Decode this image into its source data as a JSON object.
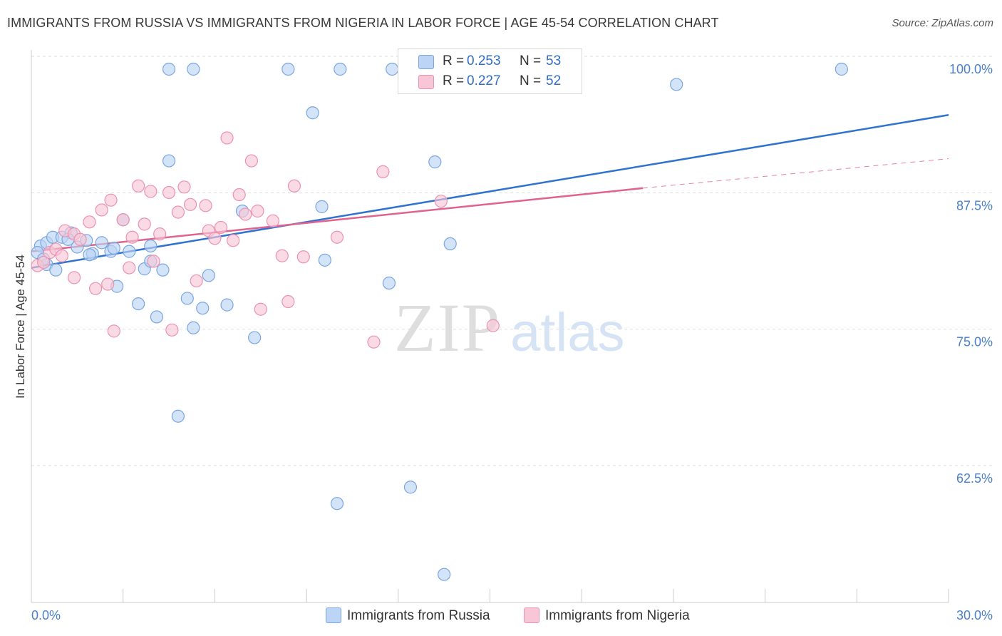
{
  "header": {
    "title": "IMMIGRANTS FROM RUSSIA VS IMMIGRANTS FROM NIGERIA IN LABOR FORCE | AGE 45-54 CORRELATION CHART",
    "source": "Source: ZipAtlas.com"
  },
  "watermark": {
    "zip": "ZIP",
    "atlas": "atlas"
  },
  "legend": {
    "russia": {
      "r_label": "R =",
      "r_value": "0.253",
      "n_label": "N =",
      "n_value": "53"
    },
    "nigeria": {
      "r_label": "R =",
      "r_value": "0.227",
      "n_label": "N =",
      "n_value": "52"
    }
  },
  "colors": {
    "russia_fill": "#bcd4f5",
    "russia_stroke": "#7aa6e0",
    "russia_line": "#2f72d0",
    "nigeria_fill": "#f8c6d6",
    "nigeria_stroke": "#ea93b0",
    "nigeria_line": "#e0628e",
    "tick_label": "#4a80cc",
    "grid": "#dddddd",
    "axis": "#cccccc"
  },
  "chart_data": {
    "type": "scatter",
    "title": "IMMIGRANTS FROM RUSSIA VS IMMIGRANTS FROM NIGERIA IN LABOR FORCE | AGE 45-54 CORRELATION CHART",
    "xlabel": "",
    "ylabel": "In Labor Force | Age 45-54",
    "xlim": [
      0,
      30
    ],
    "ylim": [
      50,
      102
    ],
    "x_tick_labels": [
      "0.0%",
      "30.0%"
    ],
    "y_ticks": [
      62.5,
      75.0,
      87.5,
      100.0
    ],
    "y_tick_labels": [
      "62.5%",
      "75.0%",
      "87.5%",
      "100.0%"
    ],
    "grid": true,
    "legend_position": "top-center",
    "series": [
      {
        "name": "Immigrants from Russia",
        "points": [
          [
            0.3,
            83.8
          ],
          [
            0.5,
            84.1
          ],
          [
            0.5,
            82.1
          ],
          [
            0.7,
            84.6
          ],
          [
            0.8,
            81.6
          ],
          [
            1.0,
            84.6
          ],
          [
            1.3,
            85.0
          ],
          [
            1.5,
            83.7
          ],
          [
            1.8,
            84.3
          ],
          [
            2.0,
            83.1
          ],
          [
            2.3,
            84.1
          ],
          [
            2.6,
            83.3
          ],
          [
            2.8,
            80.1
          ],
          [
            3.0,
            86.2
          ],
          [
            3.2,
            83.3
          ],
          [
            3.5,
            78.5
          ],
          [
            3.7,
            81.7
          ],
          [
            3.9,
            83.8
          ],
          [
            4.1,
            77.3
          ],
          [
            4.3,
            81.6
          ],
          [
            4.5,
            91.6
          ],
          [
            4.8,
            68.2
          ],
          [
            5.1,
            79.0
          ],
          [
            5.3,
            76.3
          ],
          [
            5.6,
            78.1
          ],
          [
            5.8,
            81.1
          ],
          [
            6.4,
            78.4
          ],
          [
            6.9,
            87.0
          ],
          [
            7.3,
            75.4
          ],
          [
            9.2,
            96.0
          ],
          [
            9.5,
            87.4
          ],
          [
            9.6,
            82.5
          ],
          [
            10.0,
            60.2
          ],
          [
            11.7,
            80.4
          ],
          [
            12.4,
            61.7
          ],
          [
            13.2,
            91.5
          ],
          [
            13.5,
            53.7
          ],
          [
            13.7,
            84.0
          ],
          [
            21.1,
            98.6
          ],
          [
            4.5,
            100.0
          ],
          [
            5.3,
            100.0
          ],
          [
            8.4,
            100.0
          ],
          [
            10.1,
            100.0
          ],
          [
            11.8,
            100.0
          ],
          [
            12.5,
            100.0
          ],
          [
            14.1,
            100.0
          ],
          [
            26.5,
            100.0
          ],
          [
            0.2,
            83.2
          ],
          [
            0.4,
            82.6
          ],
          [
            1.9,
            83.0
          ],
          [
            1.2,
            84.4
          ],
          [
            2.7,
            83.6
          ],
          [
            3.9,
            82.4
          ]
        ]
      },
      {
        "name": "Immigrants from Nigeria",
        "points": [
          [
            0.2,
            82.0
          ],
          [
            0.4,
            82.3
          ],
          [
            0.6,
            83.2
          ],
          [
            0.8,
            83.5
          ],
          [
            1.0,
            82.9
          ],
          [
            1.1,
            85.2
          ],
          [
            1.4,
            84.9
          ],
          [
            1.4,
            80.9
          ],
          [
            1.6,
            84.4
          ],
          [
            1.9,
            86.0
          ],
          [
            2.1,
            79.9
          ],
          [
            2.3,
            87.1
          ],
          [
            2.5,
            80.3
          ],
          [
            2.6,
            88.0
          ],
          [
            2.7,
            76.0
          ],
          [
            3.0,
            86.2
          ],
          [
            3.2,
            81.8
          ],
          [
            3.3,
            84.6
          ],
          [
            3.5,
            89.3
          ],
          [
            3.7,
            85.8
          ],
          [
            3.9,
            88.8
          ],
          [
            4.0,
            82.4
          ],
          [
            4.2,
            84.9
          ],
          [
            4.5,
            88.7
          ],
          [
            4.6,
            76.1
          ],
          [
            4.8,
            86.9
          ],
          [
            5.0,
            89.2
          ],
          [
            5.2,
            87.6
          ],
          [
            5.4,
            80.6
          ],
          [
            5.7,
            87.5
          ],
          [
            5.8,
            85.2
          ],
          [
            6.0,
            84.5
          ],
          [
            6.2,
            85.5
          ],
          [
            6.4,
            93.7
          ],
          [
            6.6,
            84.3
          ],
          [
            6.8,
            88.5
          ],
          [
            7.0,
            86.7
          ],
          [
            7.2,
            91.6
          ],
          [
            7.4,
            87.0
          ],
          [
            7.5,
            78.0
          ],
          [
            7.9,
            86.1
          ],
          [
            8.2,
            82.9
          ],
          [
            8.4,
            78.7
          ],
          [
            8.6,
            89.3
          ],
          [
            8.9,
            82.8
          ],
          [
            10.0,
            84.6
          ],
          [
            11.2,
            75.0
          ],
          [
            11.5,
            90.6
          ],
          [
            13.4,
            87.9
          ],
          [
            15.1,
            76.5
          ],
          [
            14.3,
            100.0
          ],
          [
            16.9,
            100.0
          ]
        ]
      }
    ],
    "trendlines": [
      {
        "series": "Immigrants from Russia",
        "x": [
          0,
          30
        ],
        "y": [
          81.8,
          95.8
        ],
        "style": "solid"
      },
      {
        "series": "Immigrants from Nigeria",
        "x": [
          0,
          20.0
        ],
        "y": [
          83.3,
          89.1
        ],
        "style": "solid"
      },
      {
        "series": "Immigrants from Nigeria",
        "x": [
          20.0,
          30
        ],
        "y": [
          89.1,
          91.8
        ],
        "style": "dashed"
      }
    ]
  }
}
